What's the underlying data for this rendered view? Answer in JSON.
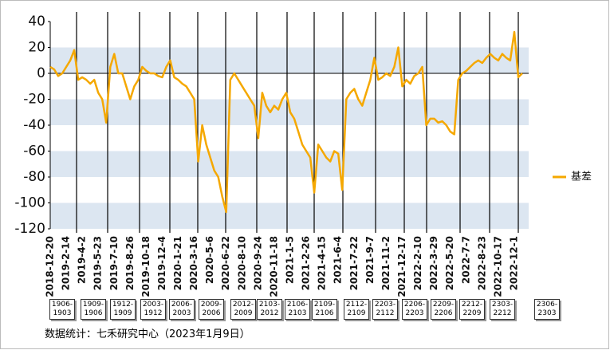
{
  "chart_data": {
    "type": "line",
    "categories": [
      "2018-12-20",
      null,
      null,
      null,
      "2019-2-14",
      null,
      null,
      null,
      "2019-4-2",
      null,
      null,
      null,
      "2019-5-23",
      null,
      null,
      null,
      "2019-7-10",
      null,
      null,
      null,
      "2019-8-26",
      null,
      null,
      null,
      "2019-10-18",
      null,
      null,
      null,
      "2019-12-4",
      null,
      null,
      null,
      "2020-1-21",
      null,
      null,
      null,
      "2020-3-16",
      null,
      null,
      null,
      "2020-5-6",
      null,
      null,
      null,
      "2020-6-22",
      null,
      null,
      null,
      "2020-8-10",
      null,
      null,
      null,
      "2020-9-24",
      null,
      null,
      null,
      "2020-11-18",
      null,
      null,
      null,
      "2021-1-5",
      null,
      null,
      null,
      "2021-2-26",
      null,
      null,
      null,
      "2021-4-15",
      null,
      null,
      null,
      "2021-6-4",
      null,
      null,
      null,
      "2021-7-22",
      null,
      null,
      null,
      "2021-9-7",
      null,
      null,
      null,
      "2021-11-2",
      null,
      null,
      null,
      "2021-12-17",
      null,
      null,
      null,
      "2022-2-10",
      null,
      null,
      null,
      "2022-3-29",
      null,
      null,
      null,
      "2022-5-20",
      null,
      null,
      null,
      "2022-7-7",
      null,
      null,
      null,
      "2022-8-23",
      null,
      null,
      null,
      "2022-10-17",
      null,
      null,
      null,
      "2022-12-1",
      null,
      null
    ],
    "series": [
      {
        "name": "基差",
        "color": "#f5a800",
        "values": [
          5,
          3,
          -2,
          0,
          5,
          10,
          18,
          -5,
          -3,
          -5,
          -8,
          -5,
          -15,
          -20,
          -38,
          5,
          15,
          0,
          0,
          -10,
          -20,
          -10,
          -5,
          5,
          2,
          0,
          0,
          -2,
          -3,
          5,
          10,
          -3,
          -5,
          -8,
          -10,
          -15,
          -20,
          -68,
          -40,
          -55,
          -65,
          -75,
          -80,
          -95,
          -107,
          -5,
          0,
          -5,
          -10,
          -15,
          -20,
          -25,
          -50,
          -15,
          -25,
          -30,
          -25,
          -28,
          -20,
          -15,
          -30,
          -35,
          -45,
          -55,
          -60,
          -65,
          -92,
          -55,
          -60,
          -65,
          -68,
          -60,
          -62,
          -90,
          -20,
          -15,
          -12,
          -20,
          -25,
          -15,
          -5,
          12,
          -5,
          -3,
          0,
          -2,
          5,
          20,
          -10,
          -5,
          -8,
          -2,
          0,
          5,
          -40,
          -35,
          -35,
          -38,
          -37,
          -40,
          -45,
          -47,
          -5,
          0,
          2,
          5,
          8,
          10,
          8,
          12,
          15,
          12,
          10,
          15,
          12,
          10,
          32,
          -3,
          0
        ]
      }
    ],
    "ylim": [
      -120,
      40
    ],
    "yticks": [
      40,
      20,
      0,
      -20,
      -40,
      -60,
      -80,
      -100,
      -120
    ],
    "grid": true,
    "legend": "right",
    "annotations": [
      "1906-1903",
      "1909-1906",
      "1912-1909",
      "2003-1912",
      "2006-2003",
      "2009-2006",
      "2012-2009",
      "2103-2012",
      "2106-2103",
      "2109-2106",
      "2112-2109",
      "2203-2112",
      "2206-2203",
      "2209-2206",
      "2212-2209",
      "2303-2212",
      "2306-2303"
    ],
    "source": "数据统计：七禾研究中心（2023年1月9日）"
  }
}
